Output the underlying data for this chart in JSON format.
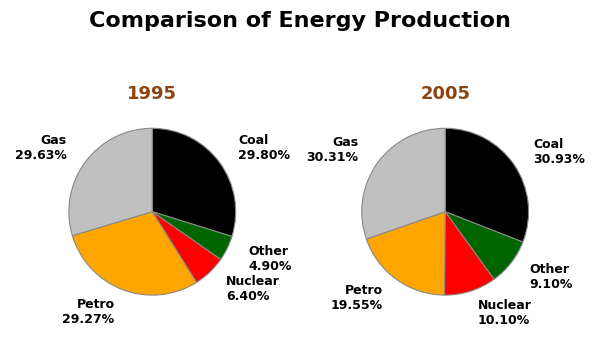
{
  "title": "Comparison of Energy Production",
  "title_fontsize": 16,
  "title_fontweight": "bold",
  "charts": [
    {
      "year": "1995",
      "labels": [
        "Coal",
        "Other",
        "Nuclear",
        "Petro",
        "Gas"
      ],
      "values": [
        29.8,
        4.9,
        6.4,
        29.27,
        29.63
      ],
      "colors": [
        "#000000",
        "#006400",
        "#ff0000",
        "#ffa500",
        "#c0c0c0"
      ],
      "startangle": 90
    },
    {
      "year": "2005",
      "labels": [
        "Coal",
        "Other",
        "Nuclear",
        "Petro",
        "Gas"
      ],
      "values": [
        30.93,
        9.1,
        10.1,
        19.55,
        30.31
      ],
      "colors": [
        "#000000",
        "#006400",
        "#ff0000",
        "#ffa500",
        "#c0c0c0"
      ],
      "startangle": 90
    }
  ],
  "year_color": "#8B4513",
  "year_fontsize": 13,
  "year_fontweight": "bold",
  "label_fontsize": 9,
  "background_color": "#ffffff"
}
